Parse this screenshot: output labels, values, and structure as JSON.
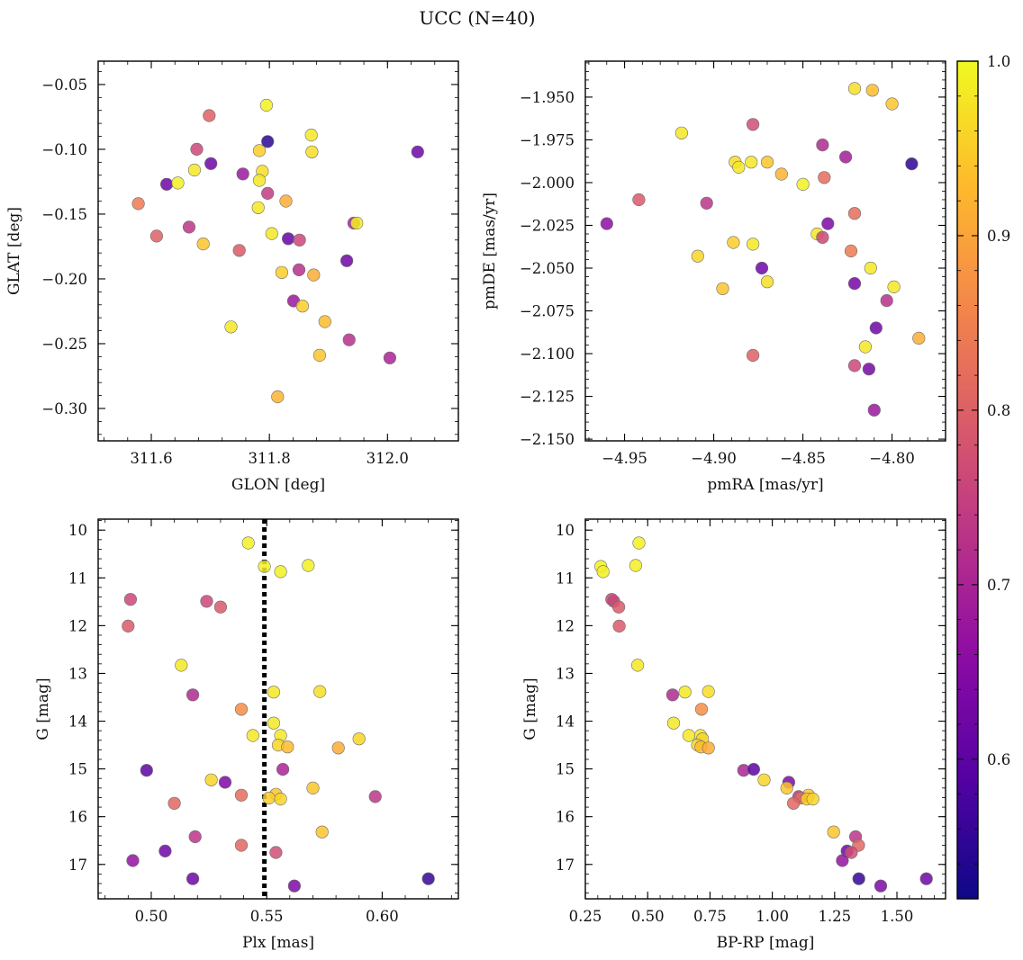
{
  "figure": {
    "title": "UCC (N=40)",
    "colormap": "plasma",
    "colorbar": {
      "min": 0.52,
      "max": 1.0,
      "ticks": [
        0.6,
        0.7,
        0.8,
        0.9,
        1.0
      ],
      "tick_labels": [
        "0.6",
        "0.7",
        "0.8",
        "0.9",
        "1.0"
      ]
    }
  },
  "chart_data": [
    {
      "type": "scatter",
      "xlabel": "GLON [deg]",
      "ylabel": "GLAT [deg]",
      "xlim": [
        311.51,
        312.12
      ],
      "ylim": [
        -0.325,
        -0.032
      ],
      "xticks": [
        311.6,
        311.8,
        312.0
      ],
      "xtick_labels": [
        "311.6",
        "311.8",
        "312.0"
      ],
      "yticks": [
        -0.05,
        -0.1,
        -0.15,
        -0.2,
        -0.25,
        -0.3
      ],
      "ytick_labels": [
        "−0.05",
        "−0.10",
        "−0.15",
        "−0.20",
        "−0.25",
        "−0.30"
      ],
      "points": [
        {
          "x": 311.795,
          "y": -0.066,
          "c": 0.99
        },
        {
          "x": 311.698,
          "y": -0.074,
          "c": 0.8
        },
        {
          "x": 311.871,
          "y": -0.089,
          "c": 0.98
        },
        {
          "x": 311.797,
          "y": -0.094,
          "c": 0.55
        },
        {
          "x": 311.677,
          "y": -0.1,
          "c": 0.76
        },
        {
          "x": 311.783,
          "y": -0.101,
          "c": 0.95
        },
        {
          "x": 311.872,
          "y": -0.102,
          "c": 0.97
        },
        {
          "x": 312.051,
          "y": -0.102,
          "c": 0.62
        },
        {
          "x": 311.701,
          "y": -0.111,
          "c": 0.62
        },
        {
          "x": 311.673,
          "y": -0.116,
          "c": 0.98
        },
        {
          "x": 311.788,
          "y": -0.117,
          "c": 0.97
        },
        {
          "x": 311.755,
          "y": -0.119,
          "c": 0.68
        },
        {
          "x": 311.783,
          "y": -0.124,
          "c": 0.98
        },
        {
          "x": 311.626,
          "y": -0.127,
          "c": 0.62
        },
        {
          "x": 311.645,
          "y": -0.126,
          "c": 0.99
        },
        {
          "x": 311.797,
          "y": -0.134,
          "c": 0.74
        },
        {
          "x": 311.828,
          "y": -0.14,
          "c": 0.91
        },
        {
          "x": 311.578,
          "y": -0.142,
          "c": 0.84
        },
        {
          "x": 311.781,
          "y": -0.145,
          "c": 0.98
        },
        {
          "x": 311.943,
          "y": -0.157,
          "c": 0.7
        },
        {
          "x": 311.948,
          "y": -0.157,
          "c": 0.99
        },
        {
          "x": 311.664,
          "y": -0.16,
          "c": 0.73
        },
        {
          "x": 311.804,
          "y": -0.165,
          "c": 0.98
        },
        {
          "x": 311.609,
          "y": -0.167,
          "c": 0.8
        },
        {
          "x": 311.832,
          "y": -0.169,
          "c": 0.61
        },
        {
          "x": 311.851,
          "y": -0.17,
          "c": 0.76
        },
        {
          "x": 311.688,
          "y": -0.173,
          "c": 0.94
        },
        {
          "x": 311.749,
          "y": -0.178,
          "c": 0.79
        },
        {
          "x": 311.931,
          "y": -0.186,
          "c": 0.62
        },
        {
          "x": 311.85,
          "y": -0.193,
          "c": 0.72
        },
        {
          "x": 311.821,
          "y": -0.195,
          "c": 0.95
        },
        {
          "x": 311.875,
          "y": -0.197,
          "c": 0.91
        },
        {
          "x": 311.841,
          "y": -0.217,
          "c": 0.68
        },
        {
          "x": 311.856,
          "y": -0.221,
          "c": 0.95
        },
        {
          "x": 311.894,
          "y": -0.233,
          "c": 0.93
        },
        {
          "x": 311.735,
          "y": -0.237,
          "c": 0.98
        },
        {
          "x": 311.935,
          "y": -0.247,
          "c": 0.72
        },
        {
          "x": 311.885,
          "y": -0.259,
          "c": 0.94
        },
        {
          "x": 312.004,
          "y": -0.261,
          "c": 0.7
        },
        {
          "x": 311.814,
          "y": -0.291,
          "c": 0.92
        }
      ]
    },
    {
      "type": "scatter",
      "xlabel": "pmRA [mas/yr]",
      "ylabel": "pmDE [mas/yr]",
      "xlim": [
        -4.972,
        -4.77
      ],
      "ylim": [
        -2.151,
        -1.929
      ],
      "xticks": [
        -4.95,
        -4.9,
        -4.85,
        -4.8
      ],
      "xtick_labels": [
        "−4.95",
        "−4.90",
        "−4.85",
        "−4.80"
      ],
      "yticks": [
        -1.95,
        -1.975,
        -2.0,
        -2.025,
        -2.05,
        -2.075,
        -2.1,
        -2.125,
        -2.15
      ],
      "ytick_labels": [
        "−1.950",
        "−1.975",
        "−2.000",
        "−2.025",
        "−2.050",
        "−2.075",
        "−2.100",
        "−2.125",
        "−2.150"
      ],
      "points": [
        {
          "x": -4.821,
          "y": -1.945,
          "c": 0.97
        },
        {
          "x": -4.811,
          "y": -1.946,
          "c": 0.93
        },
        {
          "x": -4.8,
          "y": -1.954,
          "c": 0.94
        },
        {
          "x": -4.878,
          "y": -1.966,
          "c": 0.77
        },
        {
          "x": -4.918,
          "y": -1.971,
          "c": 0.98
        },
        {
          "x": -4.839,
          "y": -1.978,
          "c": 0.71
        },
        {
          "x": -4.826,
          "y": -1.985,
          "c": 0.69
        },
        {
          "x": -4.888,
          "y": -1.988,
          "c": 0.97
        },
        {
          "x": -4.879,
          "y": -1.988,
          "c": 0.98
        },
        {
          "x": -4.87,
          "y": -1.988,
          "c": 0.94
        },
        {
          "x": -4.789,
          "y": -1.989,
          "c": 0.55
        },
        {
          "x": -4.886,
          "y": -1.991,
          "c": 0.98
        },
        {
          "x": -4.862,
          "y": -1.995,
          "c": 0.92
        },
        {
          "x": -4.838,
          "y": -1.997,
          "c": 0.82
        },
        {
          "x": -4.85,
          "y": -2.001,
          "c": 0.99
        },
        {
          "x": -4.942,
          "y": -2.01,
          "c": 0.79
        },
        {
          "x": -4.904,
          "y": -2.012,
          "c": 0.73
        },
        {
          "x": -4.821,
          "y": -2.018,
          "c": 0.82
        },
        {
          "x": -4.96,
          "y": -2.024,
          "c": 0.66
        },
        {
          "x": -4.836,
          "y": -2.024,
          "c": 0.64
        },
        {
          "x": -4.842,
          "y": -2.03,
          "c": 0.98
        },
        {
          "x": -4.839,
          "y": -2.032,
          "c": 0.76
        },
        {
          "x": -4.889,
          "y": -2.035,
          "c": 0.95
        },
        {
          "x": -4.878,
          "y": -2.036,
          "c": 0.98
        },
        {
          "x": -4.823,
          "y": -2.04,
          "c": 0.84
        },
        {
          "x": -4.909,
          "y": -2.043,
          "c": 0.96
        },
        {
          "x": -4.873,
          "y": -2.05,
          "c": 0.62
        },
        {
          "x": -4.812,
          "y": -2.05,
          "c": 0.98
        },
        {
          "x": -4.87,
          "y": -2.058,
          "c": 0.97
        },
        {
          "x": -4.821,
          "y": -2.059,
          "c": 0.63
        },
        {
          "x": -4.895,
          "y": -2.062,
          "c": 0.94
        },
        {
          "x": -4.799,
          "y": -2.061,
          "c": 0.98
        },
        {
          "x": -4.803,
          "y": -2.069,
          "c": 0.72
        },
        {
          "x": -4.809,
          "y": -2.085,
          "c": 0.62
        },
        {
          "x": -4.785,
          "y": -2.091,
          "c": 0.91
        },
        {
          "x": -4.815,
          "y": -2.096,
          "c": 0.98
        },
        {
          "x": -4.878,
          "y": -2.101,
          "c": 0.8
        },
        {
          "x": -4.821,
          "y": -2.107,
          "c": 0.76
        },
        {
          "x": -4.813,
          "y": -2.109,
          "c": 0.63
        },
        {
          "x": -4.81,
          "y": -2.133,
          "c": 0.68
        }
      ]
    },
    {
      "type": "scatter",
      "xlabel": "Plx [mas]",
      "ylabel": "G [mag]",
      "xlim": [
        0.477,
        0.633
      ],
      "ylim": [
        17.72,
        9.77
      ],
      "y_inverted": true,
      "reference_line": {
        "x": 0.549,
        "style": "dotted"
      },
      "xticks": [
        0.5,
        0.55,
        0.6
      ],
      "xtick_labels": [
        "0.50",
        "0.55",
        "0.60"
      ],
      "yticks": [
        10,
        11,
        12,
        13,
        14,
        15,
        16,
        17
      ],
      "ytick_labels": [
        "10",
        "11",
        "12",
        "13",
        "14",
        "15",
        "16",
        "17"
      ],
      "points": [
        {
          "x": 0.542,
          "y": 10.27,
          "c": 0.99
        },
        {
          "x": 0.549,
          "y": 10.76,
          "c": 0.99
        },
        {
          "x": 0.568,
          "y": 10.74,
          "c": 0.99
        },
        {
          "x": 0.556,
          "y": 10.87,
          "c": 0.99
        },
        {
          "x": 0.491,
          "y": 11.45,
          "c": 0.76
        },
        {
          "x": 0.524,
          "y": 11.49,
          "c": 0.76
        },
        {
          "x": 0.53,
          "y": 11.61,
          "c": 0.79
        },
        {
          "x": 0.49,
          "y": 12.01,
          "c": 0.79
        },
        {
          "x": 0.513,
          "y": 12.83,
          "c": 0.98
        },
        {
          "x": 0.518,
          "y": 13.45,
          "c": 0.71
        },
        {
          "x": 0.553,
          "y": 13.39,
          "c": 0.98
        },
        {
          "x": 0.573,
          "y": 13.38,
          "c": 0.97
        },
        {
          "x": 0.539,
          "y": 13.75,
          "c": 0.87
        },
        {
          "x": 0.553,
          "y": 14.04,
          "c": 0.98
        },
        {
          "x": 0.544,
          "y": 14.3,
          "c": 0.98
        },
        {
          "x": 0.556,
          "y": 14.3,
          "c": 0.98
        },
        {
          "x": 0.59,
          "y": 14.37,
          "c": 0.96
        },
        {
          "x": 0.555,
          "y": 14.5,
          "c": 0.96
        },
        {
          "x": 0.559,
          "y": 14.54,
          "c": 0.93
        },
        {
          "x": 0.581,
          "y": 14.56,
          "c": 0.91
        },
        {
          "x": 0.498,
          "y": 15.03,
          "c": 0.6
        },
        {
          "x": 0.557,
          "y": 15.01,
          "c": 0.7
        },
        {
          "x": 0.526,
          "y": 15.23,
          "c": 0.96
        },
        {
          "x": 0.532,
          "y": 15.28,
          "c": 0.64
        },
        {
          "x": 0.57,
          "y": 15.4,
          "c": 0.94
        },
        {
          "x": 0.539,
          "y": 15.55,
          "c": 0.82
        },
        {
          "x": 0.554,
          "y": 15.53,
          "c": 0.94
        },
        {
          "x": 0.551,
          "y": 15.61,
          "c": 0.95
        },
        {
          "x": 0.556,
          "y": 15.63,
          "c": 0.96
        },
        {
          "x": 0.597,
          "y": 15.58,
          "c": 0.73
        },
        {
          "x": 0.51,
          "y": 15.72,
          "c": 0.81
        },
        {
          "x": 0.574,
          "y": 16.32,
          "c": 0.94
        },
        {
          "x": 0.519,
          "y": 16.42,
          "c": 0.73
        },
        {
          "x": 0.539,
          "y": 16.6,
          "c": 0.81
        },
        {
          "x": 0.506,
          "y": 16.72,
          "c": 0.62
        },
        {
          "x": 0.554,
          "y": 16.75,
          "c": 0.77
        },
        {
          "x": 0.492,
          "y": 16.92,
          "c": 0.67
        },
        {
          "x": 0.518,
          "y": 17.3,
          "c": 0.62
        },
        {
          "x": 0.62,
          "y": 17.3,
          "c": 0.56
        },
        {
          "x": 0.562,
          "y": 17.45,
          "c": 0.64
        }
      ]
    },
    {
      "type": "scatter",
      "xlabel": "BP-RP [mag]",
      "ylabel": "G [mag]",
      "xlim": [
        0.25,
        1.695
      ],
      "ylim": [
        17.72,
        9.77
      ],
      "y_inverted": true,
      "xticks": [
        0.25,
        0.5,
        0.75,
        1.0,
        1.25,
        1.5
      ],
      "xtick_labels": [
        "0.25",
        "0.50",
        "0.75",
        "1.00",
        "1.25",
        "1.50"
      ],
      "yticks": [
        10,
        11,
        12,
        13,
        14,
        15,
        16,
        17
      ],
      "ytick_labels": [
        "10",
        "11",
        "12",
        "13",
        "14",
        "15",
        "16",
        "17"
      ],
      "points": [
        {
          "x": 0.465,
          "y": 10.27,
          "c": 0.99
        },
        {
          "x": 0.312,
          "y": 10.76,
          "c": 0.99
        },
        {
          "x": 0.452,
          "y": 10.74,
          "c": 0.99
        },
        {
          "x": 0.321,
          "y": 10.87,
          "c": 0.99
        },
        {
          "x": 0.356,
          "y": 11.45,
          "c": 0.76
        },
        {
          "x": 0.364,
          "y": 11.49,
          "c": 0.76
        },
        {
          "x": 0.384,
          "y": 11.61,
          "c": 0.79
        },
        {
          "x": 0.386,
          "y": 12.01,
          "c": 0.79
        },
        {
          "x": 0.46,
          "y": 12.83,
          "c": 0.98
        },
        {
          "x": 0.6,
          "y": 13.45,
          "c": 0.71
        },
        {
          "x": 0.65,
          "y": 13.39,
          "c": 0.98
        },
        {
          "x": 0.744,
          "y": 13.38,
          "c": 0.97
        },
        {
          "x": 0.716,
          "y": 13.75,
          "c": 0.87
        },
        {
          "x": 0.604,
          "y": 14.04,
          "c": 0.98
        },
        {
          "x": 0.665,
          "y": 14.3,
          "c": 0.98
        },
        {
          "x": 0.712,
          "y": 14.3,
          "c": 0.98
        },
        {
          "x": 0.72,
          "y": 14.37,
          "c": 0.96
        },
        {
          "x": 0.7,
          "y": 14.5,
          "c": 0.96
        },
        {
          "x": 0.714,
          "y": 14.54,
          "c": 0.93
        },
        {
          "x": 0.744,
          "y": 14.56,
          "c": 0.91
        },
        {
          "x": 0.885,
          "y": 15.03,
          "c": 0.7
        },
        {
          "x": 0.925,
          "y": 15.01,
          "c": 0.6
        },
        {
          "x": 0.967,
          "y": 15.23,
          "c": 0.96
        },
        {
          "x": 1.066,
          "y": 15.28,
          "c": 0.64
        },
        {
          "x": 1.058,
          "y": 15.4,
          "c": 0.94
        },
        {
          "x": 1.145,
          "y": 15.55,
          "c": 0.94
        },
        {
          "x": 1.106,
          "y": 15.58,
          "c": 0.73
        },
        {
          "x": 1.115,
          "y": 15.61,
          "c": 0.82
        },
        {
          "x": 1.139,
          "y": 15.63,
          "c": 0.95
        },
        {
          "x": 1.163,
          "y": 15.63,
          "c": 0.96
        },
        {
          "x": 1.085,
          "y": 15.72,
          "c": 0.81
        },
        {
          "x": 1.246,
          "y": 16.32,
          "c": 0.94
        },
        {
          "x": 1.334,
          "y": 16.42,
          "c": 0.73
        },
        {
          "x": 1.346,
          "y": 16.6,
          "c": 0.81
        },
        {
          "x": 1.3,
          "y": 16.72,
          "c": 0.62
        },
        {
          "x": 1.317,
          "y": 16.75,
          "c": 0.77
        },
        {
          "x": 1.281,
          "y": 16.92,
          "c": 0.67
        },
        {
          "x": 1.347,
          "y": 17.3,
          "c": 0.56
        },
        {
          "x": 1.618,
          "y": 17.3,
          "c": 0.62
        },
        {
          "x": 1.435,
          "y": 17.45,
          "c": 0.64
        }
      ]
    }
  ]
}
